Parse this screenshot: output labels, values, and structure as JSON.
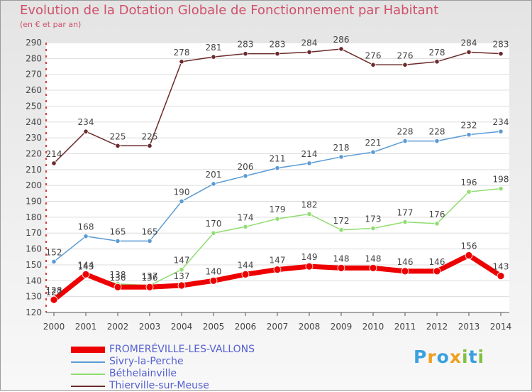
{
  "title": "Evolution de la Dotation Globale de Fonctionnement par Habitant",
  "subtitle": "(en € et par an)",
  "logo_text": "Proxiti",
  "chart_data": {
    "type": "line",
    "title": "Evolution de la Dotation Globale de Fonctionnement par Habitant",
    "subtitle": "(en € et par an)",
    "xlabel": "",
    "ylabel": "",
    "ylim": [
      120,
      290
    ],
    "yticks": [
      120,
      130,
      140,
      150,
      160,
      170,
      180,
      190,
      200,
      210,
      220,
      230,
      240,
      250,
      260,
      270,
      280,
      290
    ],
    "categories": [
      "2000",
      "2001",
      "2002",
      "2003",
      "2004",
      "2005",
      "2006",
      "2007",
      "2008",
      "2009",
      "2010",
      "2011",
      "2012",
      "2013",
      "2014"
    ],
    "grid": "horizontal",
    "legend_position": "bottom-left",
    "series": [
      {
        "name": "FROMERÉVILLE-LES-VALLONS",
        "color": "#ee0000",
        "values": [
          128,
          144,
          136,
          136,
          137,
          140,
          144,
          147,
          149,
          148,
          148,
          146,
          146,
          156,
          143
        ]
      },
      {
        "name": "Sivry-la-Perche",
        "color": "#5b9bd5",
        "values": [
          152,
          168,
          165,
          165,
          190,
          201,
          206,
          211,
          214,
          218,
          221,
          228,
          228,
          232,
          234
        ]
      },
      {
        "name": "Béthelainville",
        "color": "#90dd70",
        "values": [
          127,
          143,
          138,
          137,
          147,
          170,
          174,
          179,
          182,
          172,
          173,
          177,
          176,
          196,
          198
        ]
      },
      {
        "name": "Thierville-sur-Meuse",
        "color": "#6b2a2a",
        "values": [
          214,
          234,
          225,
          225,
          278,
          281,
          283,
          283,
          284,
          286,
          276,
          276,
          278,
          284,
          283
        ]
      }
    ]
  }
}
